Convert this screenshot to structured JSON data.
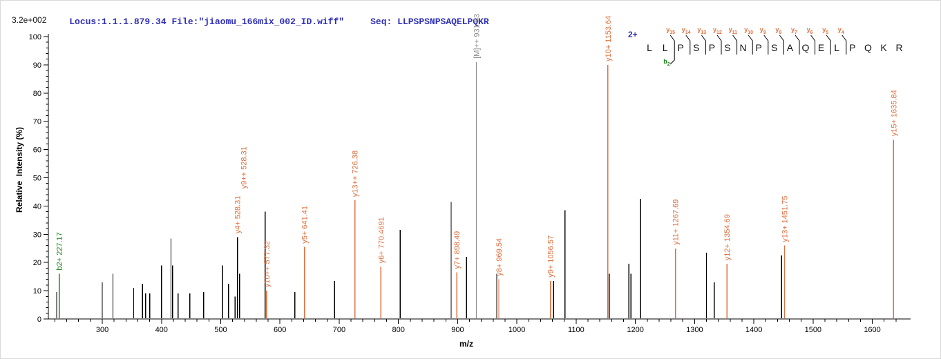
{
  "colors": {
    "header_blue": "#2e2eb8",
    "annotation_orange": "#e0703f",
    "b_ion_green": "#168016",
    "precursor_gray": "#8f8f8f",
    "peak_black": "#000000",
    "axis_black": "#000000"
  },
  "header": {
    "locus_file": "Locus:1.1.1.879.34 File:\"jiaomu_166mix_002_ID.wiff\"",
    "seq_label": "Seq: ",
    "seq_value": "LLPSPSNPSAQELPQKR",
    "intensity_scale": "3.2e+002"
  },
  "axes": {
    "y_title": "Relative  Intensity (%)",
    "x_title": "m/z"
  },
  "sequence_annotation": {
    "charge_label": "2+",
    "residues": [
      "L",
      "L",
      "P",
      "S",
      "P",
      "S",
      "N",
      "P",
      "S",
      "A",
      "Q",
      "E",
      "L",
      "P",
      "Q",
      "K",
      "R"
    ],
    "y_ion_marks": [
      {
        "index": 2,
        "ion": "y",
        "sub": "15"
      },
      {
        "index": 3,
        "ion": "y",
        "sub": "14"
      },
      {
        "index": 4,
        "ion": "y",
        "sub": "13"
      },
      {
        "index": 5,
        "ion": "y",
        "sub": "12"
      },
      {
        "index": 6,
        "ion": "y",
        "sub": "11"
      },
      {
        "index": 7,
        "ion": "y",
        "sub": "10"
      },
      {
        "index": 8,
        "ion": "y",
        "sub": "9"
      },
      {
        "index": 9,
        "ion": "y",
        "sub": "8"
      },
      {
        "index": 10,
        "ion": "y",
        "sub": "7"
      },
      {
        "index": 11,
        "ion": "y",
        "sub": "6"
      },
      {
        "index": 12,
        "ion": "y",
        "sub": "5"
      },
      {
        "index": 13,
        "ion": "y",
        "sub": "4"
      }
    ],
    "b_ion_marks": [
      {
        "index": 2,
        "ion": "b",
        "sub": "2"
      }
    ]
  },
  "chart_data": {
    "type": "bar",
    "subtype": "ms2-centroid-spectrum",
    "title": "",
    "xlabel": "m/z",
    "ylabel": "Relative  Intensity (%)",
    "intensity_scale_label": "3.2e+002",
    "xlim": [
      209,
      1660
    ],
    "ylim": [
      0,
      100
    ],
    "x_major_ticks": [
      300,
      400,
      500,
      600,
      700,
      800,
      900,
      1000,
      1100,
      1200,
      1300,
      1400,
      1500,
      1600
    ],
    "x_minor_step": 20,
    "y_major_step": 10,
    "y_minor_step": 2,
    "legend": "none",
    "grid": false,
    "annotated_peaks": [
      {
        "label": "b2+ 227.17",
        "mz": 227.17,
        "intensity": 16,
        "line": "green",
        "text": "green"
      },
      {
        "label": "y4+ 528.31",
        "label2": "y9++ 528.31",
        "mz": 528.31,
        "intensity": 29,
        "line": "black",
        "text": "orange"
      },
      {
        "label": "y10++ 577.32",
        "mz": 577.32,
        "intensity": 10,
        "line": "orange",
        "text": "orange"
      },
      {
        "label": "y5+ 641.41",
        "mz": 641.41,
        "intensity": 25.5,
        "line": "orange",
        "text": "orange"
      },
      {
        "label": "y13++ 726.38",
        "mz": 726.38,
        "intensity": 42,
        "line": "orange",
        "text": "orange"
      },
      {
        "label": "y6+ 770.4691",
        "mz": 770.4691,
        "intensity": 18.5,
        "line": "orange",
        "text": "orange"
      },
      {
        "label": "y7+ 898.49",
        "mz": 898.49,
        "intensity": 16.5,
        "line": "orange",
        "text": "orange"
      },
      {
        "label": "[M]++ 931.53",
        "mz": 931.53,
        "intensity": 91,
        "line": "gray",
        "text": "gray"
      },
      {
        "label": "y8+ 969.54",
        "mz": 969.54,
        "intensity": 14,
        "line": "orange",
        "text": "orange"
      },
      {
        "label": "y9+ 1056.57",
        "mz": 1056.57,
        "intensity": 13.5,
        "line": "orange",
        "text": "orange"
      },
      {
        "label": "y10+ 1153.64",
        "mz": 1153.64,
        "intensity": 90,
        "line": "orange",
        "text": "orange"
      },
      {
        "label": "y11+ 1267.69",
        "mz": 1267.69,
        "intensity": 25,
        "line": "orange",
        "text": "orange"
      },
      {
        "label": "y12+ 1354.69",
        "mz": 1354.69,
        "intensity": 19.5,
        "line": "orange",
        "text": "orange"
      },
      {
        "label": "y13+ 1451.75",
        "mz": 1451.75,
        "intensity": 26,
        "line": "orange",
        "text": "orange"
      },
      {
        "label": "y15+ 1635.84",
        "mz": 1635.84,
        "intensity": 63.5,
        "line": "orange",
        "text": "orange"
      }
    ],
    "unannotated_peaks": [
      [
        223,
        9.5
      ],
      [
        300,
        13
      ],
      [
        318,
        16
      ],
      [
        353,
        11
      ],
      [
        368,
        12.5
      ],
      [
        373,
        9
      ],
      [
        380,
        9
      ],
      [
        400,
        19
      ],
      [
        416,
        28.5
      ],
      [
        418.5,
        19
      ],
      [
        428,
        9
      ],
      [
        448,
        9
      ],
      [
        471,
        9.5
      ],
      [
        503,
        19
      ],
      [
        513,
        12.5
      ],
      [
        524,
        8
      ],
      [
        532,
        16
      ],
      [
        575,
        38
      ],
      [
        625,
        9.5
      ],
      [
        692,
        13.5
      ],
      [
        803,
        31.5
      ],
      [
        889,
        41.5
      ],
      [
        915,
        22
      ],
      [
        966,
        16
      ],
      [
        1062,
        13.5
      ],
      [
        1081,
        38.5
      ],
      [
        1156,
        16
      ],
      [
        1189,
        19.5
      ],
      [
        1192.5,
        16
      ],
      [
        1209,
        42.5
      ],
      [
        1320,
        23.5
      ],
      [
        1333,
        13
      ],
      [
        1447,
        22.5
      ]
    ]
  }
}
